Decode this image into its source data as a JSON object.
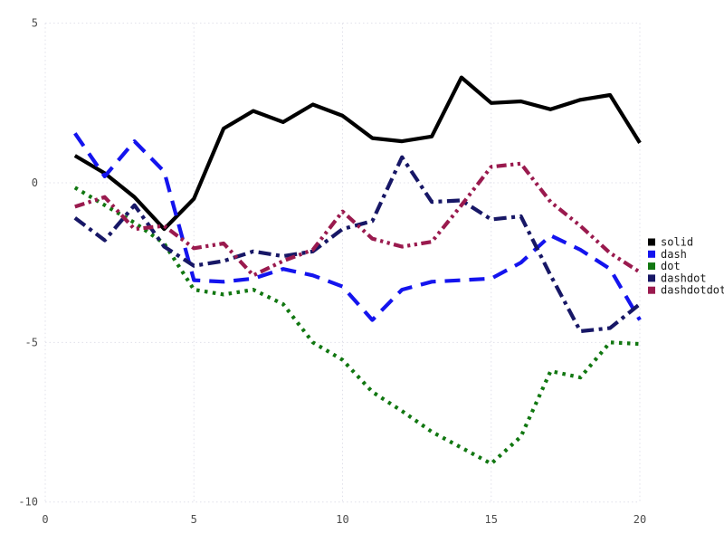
{
  "chart_data": {
    "type": "line",
    "title": "",
    "xlabel": "",
    "ylabel": "",
    "xlim": [
      0,
      20
    ],
    "ylim": [
      -10,
      5
    ],
    "x_ticks": [
      0,
      5,
      10,
      15,
      20
    ],
    "x_tick_labels": [
      "0",
      "5",
      "10",
      "15",
      "20"
    ],
    "y_ticks": [
      -10,
      -5,
      0,
      5
    ],
    "y_tick_labels": [
      "-10",
      "-5",
      "0",
      "5"
    ],
    "grid": true,
    "grid_style": "dotted",
    "grid_color": "#e0e0ea",
    "tick_label_color": "#4d4d4d",
    "background_color": "#ffffff",
    "legend_position": "right-outside-middle",
    "x": [
      1,
      2,
      3,
      4,
      5,
      6,
      7,
      8,
      9,
      10,
      11,
      12,
      13,
      14,
      15,
      16,
      17,
      18,
      19,
      20
    ],
    "series": [
      {
        "name": "solid",
        "color": "#000000",
        "dash_style": "solid",
        "values": [
          0.85,
          0.3,
          -0.45,
          -1.45,
          -0.5,
          1.7,
          2.25,
          1.9,
          2.45,
          2.1,
          1.4,
          1.3,
          1.45,
          3.3,
          2.5,
          2.55,
          2.3,
          2.6,
          2.75,
          1.25
        ]
      },
      {
        "name": "dash",
        "color": "#1414ee",
        "dash_style": "dash",
        "values": [
          1.55,
          0.2,
          1.3,
          0.35,
          -3.05,
          -3.1,
          -3.0,
          -2.7,
          -2.9,
          -3.25,
          -4.3,
          -3.35,
          -3.1,
          -3.05,
          -3.0,
          -2.5,
          -1.65,
          -2.1,
          -2.7,
          -4.3
        ]
      },
      {
        "name": "dot",
        "color": "#117711",
        "dash_style": "dot",
        "values": [
          -0.15,
          -0.7,
          -1.25,
          -1.9,
          -3.35,
          -3.5,
          -3.35,
          -3.8,
          -5.0,
          -5.55,
          -6.55,
          -7.15,
          -7.8,
          -8.3,
          -8.8,
          -7.95,
          -5.9,
          -6.1,
          -5.0,
          -5.05
        ]
      },
      {
        "name": "dashdot",
        "color": "#171766",
        "dash_style": "dashdot",
        "values": [
          -1.1,
          -1.8,
          -0.7,
          -2.0,
          -2.6,
          -2.45,
          -2.15,
          -2.3,
          -2.15,
          -1.45,
          -1.2,
          0.8,
          -0.6,
          -0.55,
          -1.15,
          -1.05,
          -2.9,
          -4.65,
          -4.55,
          -3.8
        ]
      },
      {
        "name": "dashdotdot",
        "color": "#9a1a4e",
        "dash_style": "dashdotdot",
        "values": [
          -0.75,
          -0.45,
          -1.45,
          -1.35,
          -2.05,
          -1.9,
          -2.9,
          -2.45,
          -2.1,
          -0.9,
          -1.75,
          -2.0,
          -1.85,
          -0.7,
          0.5,
          0.6,
          -0.6,
          -1.35,
          -2.2,
          -2.8
        ]
      }
    ],
    "legend": [
      {
        "label": "solid",
        "color": "#000000"
      },
      {
        "label": "dash",
        "color": "#1414ee"
      },
      {
        "label": "dot",
        "color": "#117711"
      },
      {
        "label": "dashdot",
        "color": "#171766"
      },
      {
        "label": "dashdotdot",
        "color": "#9a1a4e"
      }
    ]
  }
}
